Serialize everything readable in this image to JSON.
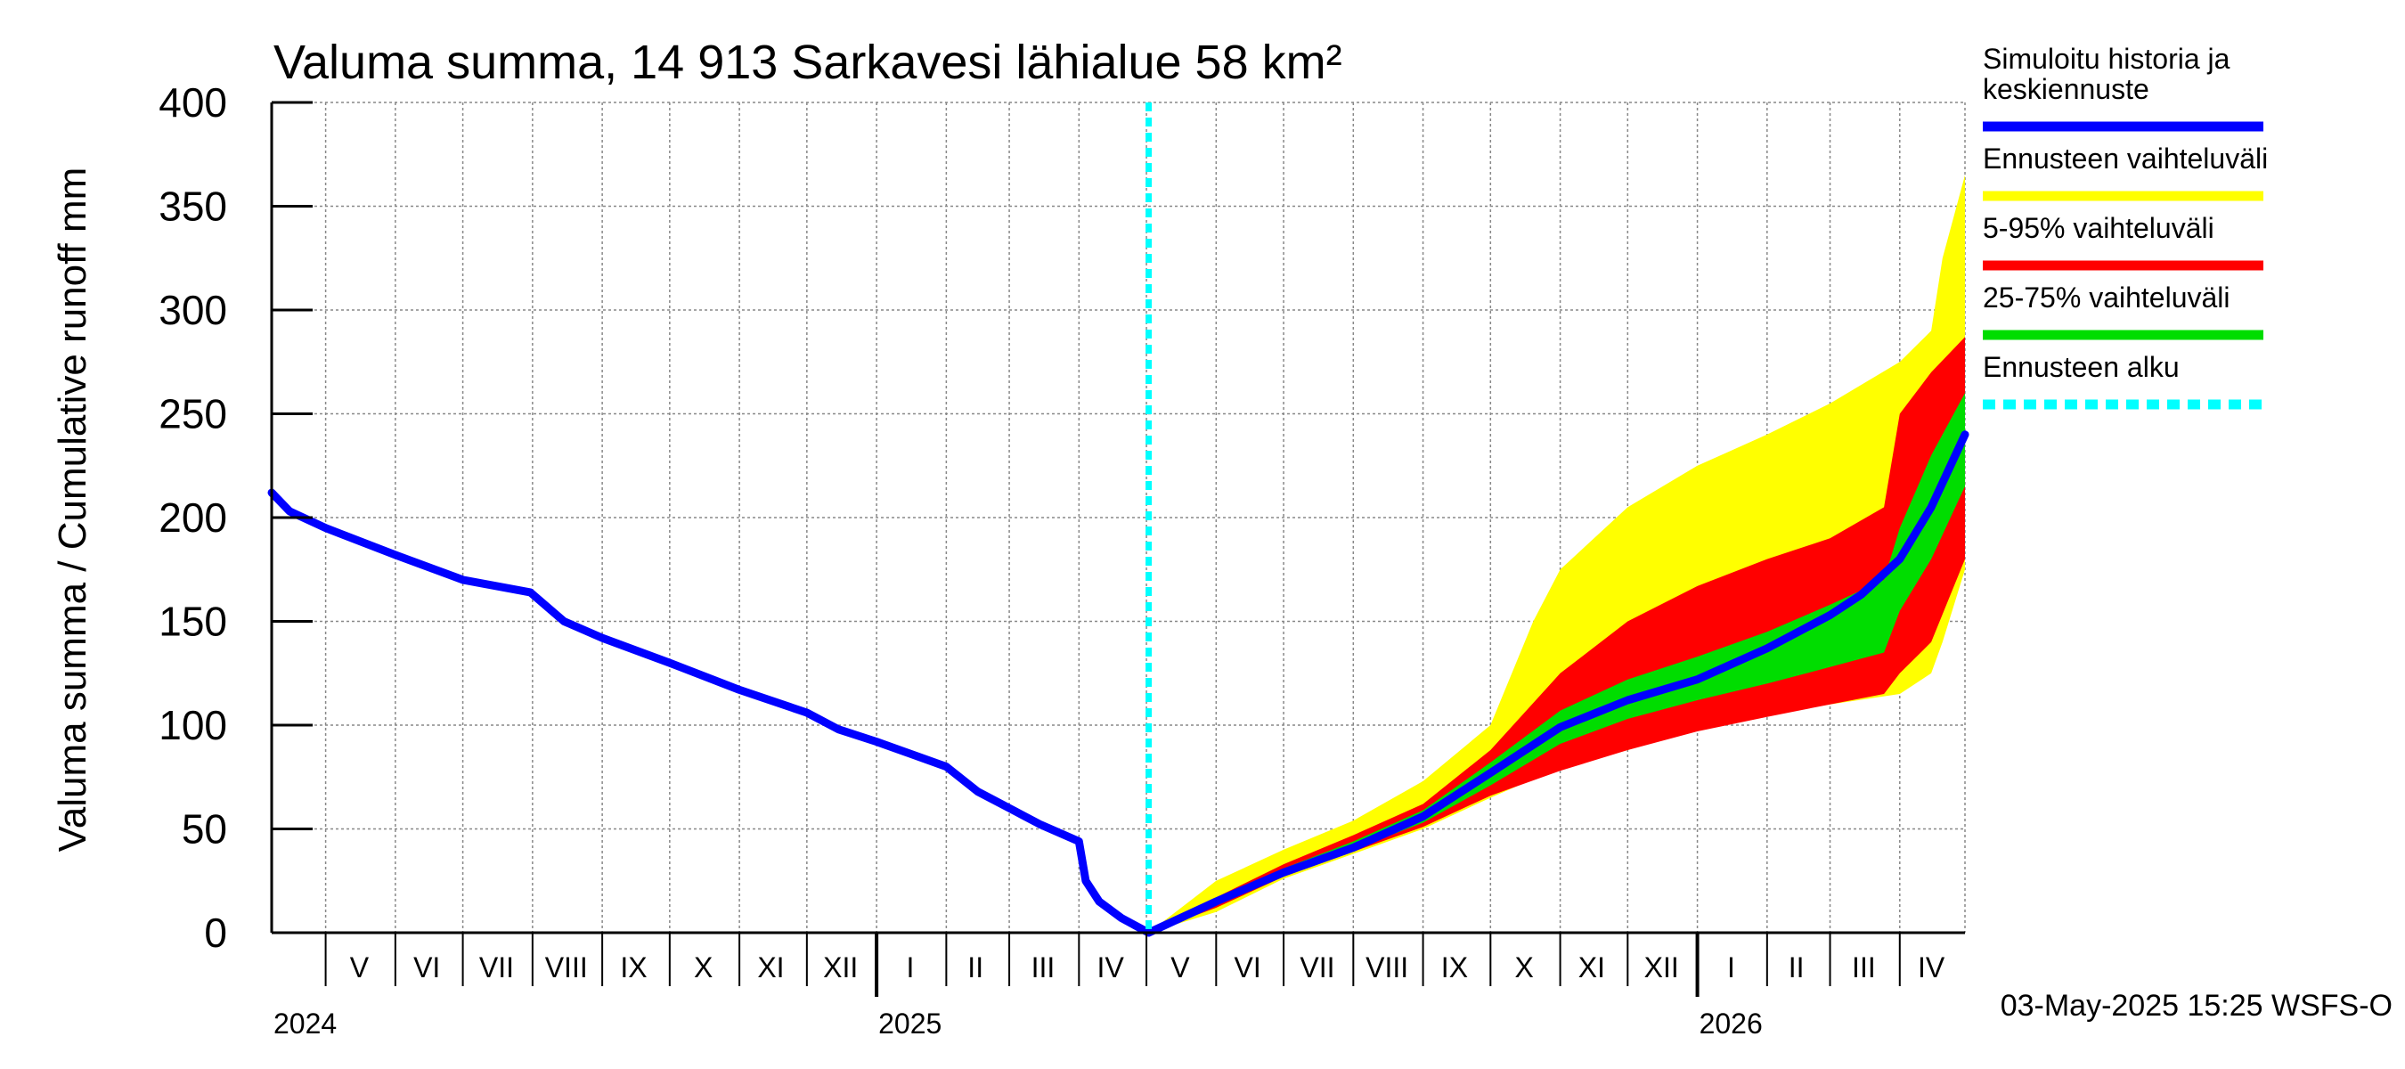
{
  "chart_data": {
    "type": "area",
    "title": "Valuma summa, 14 913 Sarkavesi lähialue 58 km²",
    "ylabel": "Valuma summa / Cumulative runoff    mm",
    "ylim": [
      0,
      400
    ],
    "yticks": [
      0,
      50,
      100,
      150,
      200,
      250,
      300,
      350,
      400
    ],
    "xlim": [
      "2024-04-07",
      "2026-04-30"
    ],
    "month_labels": [
      {
        "label": "V",
        "date": "2024-05-16"
      },
      {
        "label": "VI",
        "date": "2024-06-15"
      },
      {
        "label": "VII",
        "date": "2024-07-16"
      },
      {
        "label": "VIII",
        "date": "2024-08-16"
      },
      {
        "label": "IX",
        "date": "2024-09-15"
      },
      {
        "label": "X",
        "date": "2024-10-16"
      },
      {
        "label": "XI",
        "date": "2024-11-15"
      },
      {
        "label": "XII",
        "date": "2024-12-16"
      },
      {
        "label": "I",
        "date": "2025-01-16"
      },
      {
        "label": "II",
        "date": "2025-02-14"
      },
      {
        "label": "III",
        "date": "2025-03-16"
      },
      {
        "label": "IV",
        "date": "2025-04-15"
      },
      {
        "label": "V",
        "date": "2025-05-16"
      },
      {
        "label": "VI",
        "date": "2025-06-15"
      },
      {
        "label": "VII",
        "date": "2025-07-16"
      },
      {
        "label": "VIII",
        "date": "2025-08-16"
      },
      {
        "label": "IX",
        "date": "2025-09-15"
      },
      {
        "label": "X",
        "date": "2025-10-16"
      },
      {
        "label": "XI",
        "date": "2025-11-15"
      },
      {
        "label": "XII",
        "date": "2025-12-16"
      },
      {
        "label": "I",
        "date": "2026-01-16"
      },
      {
        "label": "II",
        "date": "2026-02-14"
      },
      {
        "label": "III",
        "date": "2026-03-16"
      },
      {
        "label": "IV",
        "date": "2026-04-15"
      }
    ],
    "month_boundaries": [
      "2024-05-01",
      "2024-06-01",
      "2024-07-01",
      "2024-08-01",
      "2024-09-01",
      "2024-10-01",
      "2024-11-01",
      "2024-12-01",
      "2025-01-01",
      "2025-02-01",
      "2025-03-01",
      "2025-04-01",
      "2025-05-01",
      "2025-06-01",
      "2025-07-01",
      "2025-08-01",
      "2025-09-01",
      "2025-10-01",
      "2025-11-01",
      "2025-12-01",
      "2026-01-01",
      "2026-02-01",
      "2026-03-01",
      "2026-04-01"
    ],
    "year_labels": [
      {
        "label": "2024",
        "date": "2024-04-07"
      },
      {
        "label": "2025",
        "date": "2025-01-01"
      },
      {
        "label": "2026",
        "date": "2026-01-01"
      }
    ],
    "forecast_start": "2025-05-02",
    "grid": true,
    "legend_position": "right",
    "legend": [
      {
        "label": "Simuloitu historia ja keskiennuste",
        "label_lines": [
          "Simuloitu historia ja",
          "keskiennuste"
        ],
        "color": "#0000ff",
        "style": "solid"
      },
      {
        "label": "Ennusteen vaihteluväli",
        "label_lines": [
          "Ennusteen vaihteluväli"
        ],
        "color": "#ffff00",
        "style": "solid"
      },
      {
        "label": "5-95% vaihteluväli",
        "label_lines": [
          "5-95% vaihteluväli"
        ],
        "color": "#ff0000",
        "style": "solid"
      },
      {
        "label": "25-75% vaihteluväli",
        "label_lines": [
          "25-75% vaihteluväli"
        ],
        "color": "#00dd00",
        "style": "solid"
      },
      {
        "label": "Ennusteen alku",
        "label_lines": [
          "Ennusteen alku"
        ],
        "color": "#00ffff",
        "style": "dashed"
      }
    ],
    "series": [
      {
        "name": "Simuloitu historia ja keskiennuste",
        "color": "#0000ff",
        "points": [
          [
            "2024-04-07",
            212
          ],
          [
            "2024-04-15",
            203
          ],
          [
            "2024-05-01",
            195
          ],
          [
            "2024-06-01",
            182
          ],
          [
            "2024-07-01",
            170
          ],
          [
            "2024-07-31",
            164
          ],
          [
            "2024-08-15",
            150
          ],
          [
            "2024-09-01",
            142
          ],
          [
            "2024-10-01",
            130
          ],
          [
            "2024-11-01",
            117
          ],
          [
            "2024-12-01",
            106
          ],
          [
            "2024-12-15",
            98
          ],
          [
            "2025-01-01",
            92
          ],
          [
            "2025-02-01",
            80
          ],
          [
            "2025-02-15",
            68
          ],
          [
            "2025-03-01",
            60
          ],
          [
            "2025-03-15",
            52
          ],
          [
            "2025-04-01",
            44
          ],
          [
            "2025-04-04",
            25
          ],
          [
            "2025-04-10",
            15
          ],
          [
            "2025-04-20",
            7
          ],
          [
            "2025-05-02",
            0
          ],
          [
            "2025-06-01",
            15
          ],
          [
            "2025-07-01",
            29
          ],
          [
            "2025-08-01",
            41
          ],
          [
            "2025-09-01",
            56
          ],
          [
            "2025-10-01",
            77
          ],
          [
            "2025-11-01",
            99
          ],
          [
            "2025-12-01",
            112
          ],
          [
            "2026-01-01",
            122
          ],
          [
            "2026-02-01",
            137
          ],
          [
            "2026-03-01",
            153
          ],
          [
            "2026-03-15",
            163
          ],
          [
            "2026-04-01",
            180
          ],
          [
            "2026-04-15",
            205
          ],
          [
            "2026-04-30",
            240
          ]
        ]
      }
    ],
    "bands": [
      {
        "name": "Ennusteen vaihteluväli",
        "color": "#ffff00",
        "dates": [
          "2025-05-02",
          "2025-06-01",
          "2025-07-01",
          "2025-08-01",
          "2025-09-01",
          "2025-10-01",
          "2025-10-20",
          "2025-11-01",
          "2025-12-01",
          "2026-01-01",
          "2026-02-01",
          "2026-03-01",
          "2026-04-01",
          "2026-04-15",
          "2026-04-20",
          "2026-04-30"
        ],
        "upper": [
          0,
          25,
          40,
          54,
          73,
          100,
          150,
          175,
          205,
          225,
          240,
          255,
          275,
          290,
          325,
          365
        ],
        "lower": [
          0,
          10,
          26,
          38,
          50,
          65,
          74,
          79,
          88,
          98,
          105,
          110,
          115,
          125,
          140,
          175
        ]
      },
      {
        "name": "5-95% vaihteluväli",
        "color": "#ff0000",
        "dates": [
          "2025-05-02",
          "2025-06-01",
          "2025-07-01",
          "2025-08-01",
          "2025-09-01",
          "2025-10-01",
          "2025-11-01",
          "2025-12-01",
          "2026-01-01",
          "2026-02-01",
          "2026-03-01",
          "2026-03-25",
          "2026-04-01",
          "2026-04-15",
          "2026-04-30"
        ],
        "upper": [
          0,
          17,
          33,
          47,
          62,
          88,
          125,
          150,
          167,
          180,
          190,
          205,
          250,
          270,
          287
        ],
        "lower": [
          0,
          12,
          27,
          39,
          51,
          66,
          78,
          88,
          97,
          104,
          110,
          115,
          125,
          140,
          180
        ]
      },
      {
        "name": "25-75% vaihteluväli",
        "color": "#00dd00",
        "dates": [
          "2025-05-02",
          "2025-06-01",
          "2025-07-01",
          "2025-08-01",
          "2025-09-01",
          "2025-10-01",
          "2025-11-01",
          "2025-12-01",
          "2026-01-01",
          "2026-02-01",
          "2026-03-01",
          "2026-03-25",
          "2026-04-01",
          "2026-04-15",
          "2026-04-30"
        ],
        "upper": [
          0,
          16,
          31,
          44,
          59,
          82,
          107,
          122,
          133,
          145,
          158,
          170,
          195,
          230,
          260
        ],
        "lower": [
          0,
          13,
          28,
          40,
          53,
          71,
          91,
          103,
          112,
          120,
          128,
          135,
          155,
          180,
          215
        ]
      }
    ]
  },
  "footer": {
    "timestamp": "03-May-2025 15:25 WSFS-O"
  }
}
